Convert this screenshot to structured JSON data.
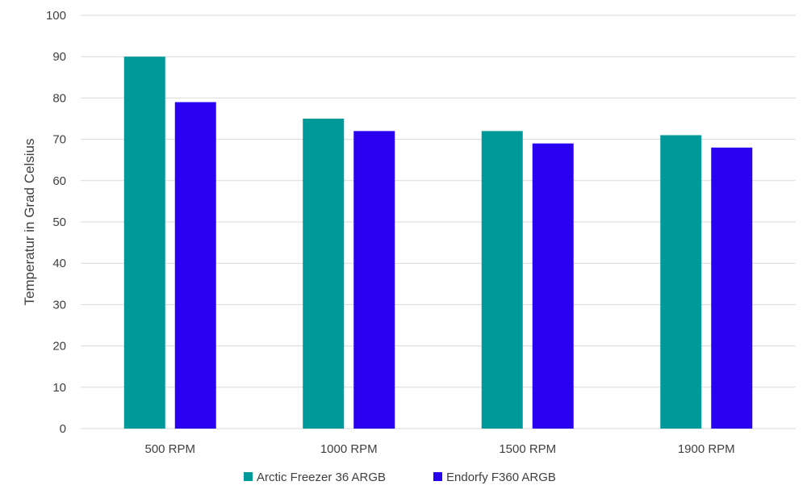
{
  "chart_data": {
    "type": "bar",
    "categories": [
      "500 RPM",
      "1000 RPM",
      "1500 RPM",
      "1900 RPM"
    ],
    "series": [
      {
        "name": "Arctic Freezer 36 ARGB",
        "values": [
          90,
          75,
          72,
          71
        ],
        "color": "#009999"
      },
      {
        "name": "Endorfy F360 ARGB",
        "values": [
          79,
          72,
          69,
          68
        ],
        "color": "#2A00F0"
      }
    ],
    "ylabel": "Temperatur in Grad Celsius",
    "ylim": [
      0,
      100
    ],
    "yticks": [
      0,
      10,
      20,
      30,
      40,
      50,
      60,
      70,
      80,
      90,
      100
    ],
    "grid": true,
    "legend": "bottom-center"
  },
  "colors": {
    "grid": "#D9D9D9",
    "text": "#404040"
  }
}
